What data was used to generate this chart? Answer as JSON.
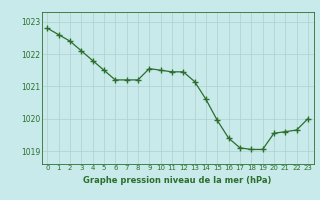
{
  "x": [
    0,
    1,
    2,
    3,
    4,
    5,
    6,
    7,
    8,
    9,
    10,
    11,
    12,
    13,
    14,
    15,
    16,
    17,
    18,
    19,
    20,
    21,
    22,
    23
  ],
  "y": [
    1022.8,
    1022.6,
    1022.4,
    1022.1,
    1021.8,
    1021.5,
    1021.2,
    1021.2,
    1021.2,
    1021.55,
    1021.5,
    1021.45,
    1021.45,
    1021.15,
    1020.6,
    1019.95,
    1019.4,
    1019.1,
    1019.05,
    1019.05,
    1019.55,
    1019.6,
    1019.65,
    1020.0
  ],
  "line_color": "#2d6e2d",
  "marker": "+",
  "bg_color": "#c8eaea",
  "grid_color": "#b0d0d0",
  "label_color": "#2d6e2d",
  "xlabel": "Graphe pression niveau de la mer (hPa)",
  "yticks": [
    1019,
    1020,
    1021,
    1022,
    1023
  ],
  "xticks": [
    0,
    1,
    2,
    3,
    4,
    5,
    6,
    7,
    8,
    9,
    10,
    11,
    12,
    13,
    14,
    15,
    16,
    17,
    18,
    19,
    20,
    21,
    22,
    23
  ],
  "ylim": [
    1018.6,
    1023.3
  ],
  "xlim": [
    -0.5,
    23.5
  ]
}
